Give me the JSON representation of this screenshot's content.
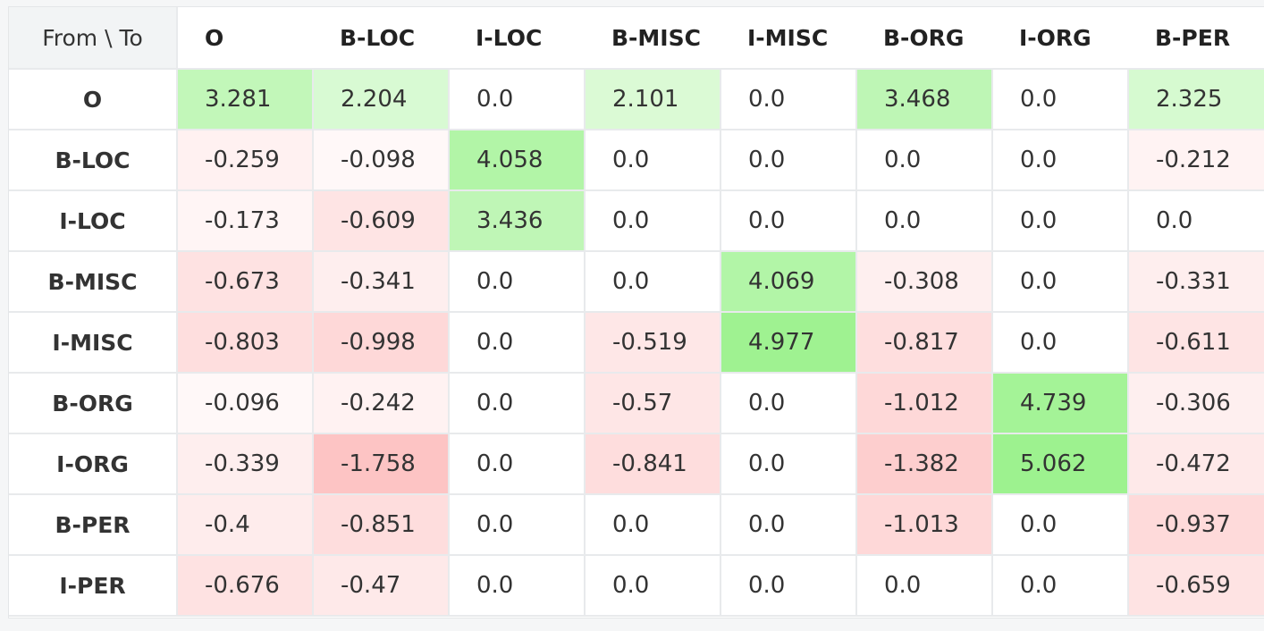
{
  "chart_data": {
    "type": "heatmap",
    "corner_label": "From \\ To",
    "columns": [
      "O",
      "B-LOC",
      "I-LOC",
      "B-MISC",
      "I-MISC",
      "B-ORG",
      "I-ORG",
      "B-PER"
    ],
    "rows": [
      {
        "label": "O",
        "values": [
          3.281,
          2.204,
          0.0,
          2.101,
          0.0,
          3.468,
          0.0,
          2.325
        ]
      },
      {
        "label": "B-LOC",
        "values": [
          -0.259,
          -0.098,
          4.058,
          0.0,
          0.0,
          0.0,
          0.0,
          -0.212
        ]
      },
      {
        "label": "I-LOC",
        "values": [
          -0.173,
          -0.609,
          3.436,
          0.0,
          0.0,
          0.0,
          0.0,
          0.0
        ]
      },
      {
        "label": "B-MISC",
        "values": [
          -0.673,
          -0.341,
          0.0,
          0.0,
          4.069,
          -0.308,
          0.0,
          -0.331
        ]
      },
      {
        "label": "I-MISC",
        "values": [
          -0.803,
          -0.998,
          0.0,
          -0.519,
          4.977,
          -0.817,
          0.0,
          -0.611
        ]
      },
      {
        "label": "B-ORG",
        "values": [
          -0.096,
          -0.242,
          0.0,
          -0.57,
          0.0,
          -1.012,
          4.739,
          -0.306
        ]
      },
      {
        "label": "I-ORG",
        "values": [
          -0.339,
          -1.758,
          0.0,
          -0.841,
          0.0,
          -1.382,
          5.062,
          -0.472
        ]
      },
      {
        "label": "B-PER",
        "values": [
          -0.4,
          -0.851,
          0.0,
          0.0,
          0.0,
          -1.013,
          0.0,
          -0.937
        ]
      },
      {
        "label": "I-PER",
        "values": [
          -0.676,
          -0.47,
          0.0,
          0.0,
          0.0,
          0.0,
          0.0,
          -0.659
        ]
      }
    ],
    "color_scale": {
      "positive_max": 5.062,
      "negative_min": -1.758,
      "positive_color": "#9df28f",
      "negative_color": "#fdc4c4",
      "zero_color": "#ffffff"
    }
  }
}
